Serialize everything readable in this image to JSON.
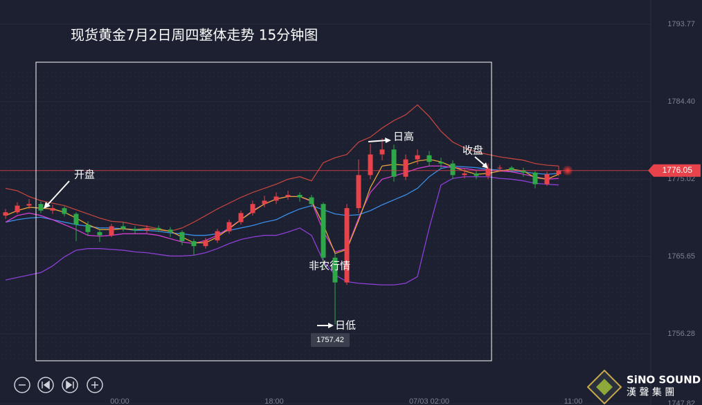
{
  "chart_data": {
    "type": "candlestick",
    "title": "现货黄金7月2日周四整体走势  15分钟图",
    "ylim": [
      1749,
      1796.7
    ],
    "yticks": [
      1793.77,
      {
        "value": 1784.4,
        "label": "1784.40"
      },
      1775.02,
      1765.65,
      1756.28,
      1747.82
    ],
    "grid": true,
    "x_labels": [
      "00:00",
      "18:00",
      "07/03 02:00",
      "11:00"
    ],
    "up_color": "#e8434a",
    "down_color": "#2fa84a",
    "ohlc": [
      [
        1770.6,
        1771.4,
        1770.2,
        1771.0
      ],
      [
        1771.0,
        1772.2,
        1770.8,
        1771.8
      ],
      [
        1771.8,
        1772.6,
        1771.4,
        1772.0
      ],
      [
        1772.0,
        1772.3,
        1770.9,
        1771.2
      ],
      [
        1771.2,
        1771.9,
        1770.8,
        1771.5
      ],
      [
        1771.5,
        1771.7,
        1770.5,
        1770.8
      ],
      [
        1770.8,
        1771.0,
        1767.5,
        1769.5
      ],
      [
        1769.5,
        1769.9,
        1768.2,
        1768.6
      ],
      [
        1768.6,
        1769.0,
        1767.4,
        1768.2
      ],
      [
        1768.2,
        1769.6,
        1768.0,
        1769.3
      ],
      [
        1769.3,
        1769.8,
        1768.7,
        1769.0
      ],
      [
        1769.0,
        1769.3,
        1768.4,
        1768.8
      ],
      [
        1768.8,
        1769.4,
        1768.5,
        1769.1
      ],
      [
        1769.1,
        1769.4,
        1768.6,
        1768.9
      ],
      [
        1768.9,
        1769.2,
        1768.0,
        1768.6
      ],
      [
        1768.6,
        1768.8,
        1767.0,
        1767.5
      ],
      [
        1767.5,
        1767.8,
        1765.8,
        1766.9
      ],
      [
        1766.9,
        1767.9,
        1766.6,
        1767.6
      ],
      [
        1767.6,
        1769.0,
        1767.3,
        1768.7
      ],
      [
        1768.7,
        1770.1,
        1768.4,
        1769.8
      ],
      [
        1769.8,
        1771.2,
        1769.5,
        1770.9
      ],
      [
        1770.9,
        1772.4,
        1770.6,
        1772.0
      ],
      [
        1772.0,
        1773.0,
        1771.6,
        1772.4
      ],
      [
        1772.4,
        1773.4,
        1772.0,
        1772.9
      ],
      [
        1772.9,
        1773.6,
        1772.5,
        1773.1
      ],
      [
        1773.1,
        1773.4,
        1772.3,
        1772.8
      ],
      [
        1772.8,
        1773.1,
        1771.6,
        1772.0
      ],
      [
        1772.0,
        1772.2,
        1764.2,
        1765.5
      ],
      [
        1765.5,
        1766.0,
        1757.42,
        1762.5
      ],
      [
        1762.5,
        1772.0,
        1762.2,
        1771.5
      ],
      [
        1771.5,
        1777.4,
        1770.9,
        1775.5
      ],
      [
        1775.5,
        1779.3,
        1775.0,
        1778.0
      ],
      [
        1778.0,
        1779.96,
        1777.3,
        1778.6
      ],
      [
        1778.6,
        1779.2,
        1774.7,
        1775.3
      ],
      [
        1775.3,
        1778.0,
        1774.9,
        1777.4
      ],
      [
        1777.4,
        1778.6,
        1776.8,
        1777.9
      ],
      [
        1777.9,
        1778.4,
        1776.6,
        1777.1
      ],
      [
        1777.1,
        1777.6,
        1776.3,
        1776.9
      ],
      [
        1776.9,
        1777.3,
        1775.0,
        1775.5
      ],
      [
        1775.5,
        1776.3,
        1775.1,
        1775.7
      ],
      [
        1775.7,
        1776.1,
        1775.0,
        1775.4
      ],
      [
        1775.4,
        1776.9,
        1775.0,
        1776.3
      ],
      [
        1776.3,
        1776.7,
        1775.9,
        1776.4
      ],
      [
        1776.4,
        1776.6,
        1775.8,
        1776.1
      ],
      [
        1776.1,
        1776.4,
        1775.3,
        1775.8
      ],
      [
        1775.8,
        1776.0,
        1773.9,
        1774.4
      ],
      [
        1774.4,
        1775.9,
        1774.2,
        1775.6
      ],
      [
        1775.6,
        1776.6,
        1775.4,
        1776.05
      ]
    ],
    "series": [
      {
        "color": "#c0443f",
        "values": [
          1773.9,
          1773.6,
          1772.9,
          1772.4,
          1772.1,
          1771.8,
          1771.3,
          1770.8,
          1770.3,
          1769.9,
          1769.8,
          1769.5,
          1769.3,
          1769.0,
          1768.7,
          1769.1,
          1769.8,
          1770.6,
          1771.4,
          1772.1,
          1772.8,
          1773.4,
          1773.9,
          1774.4,
          1775.0,
          1775.3,
          1774.8,
          1777.0,
          1777.6,
          1778.0,
          1779.5,
          1780.1,
          1781.2,
          1782.1,
          1782.8,
          1784.0,
          1782.6,
          1780.8,
          1779.5,
          1778.8,
          1778.3,
          1778.0,
          1777.7,
          1777.5,
          1777.3,
          1776.9,
          1776.7,
          1776.6
        ]
      },
      {
        "color": "#8e3fd6",
        "values": [
          1762.8,
          1763.1,
          1763.4,
          1763.7,
          1764.5,
          1765.6,
          1766.4,
          1766.6,
          1766.6,
          1766.5,
          1766.4,
          1766.2,
          1766.1,
          1765.9,
          1765.7,
          1765.7,
          1765.8,
          1766.1,
          1766.6,
          1767.2,
          1767.7,
          1768.0,
          1768.2,
          1768.2,
          1768.6,
          1769.1,
          1768.2,
          1765.1,
          1763.4,
          1762.6,
          1762.4,
          1762.3,
          1762.2,
          1762.2,
          1762.4,
          1763.2,
          1769.1,
          1774.3,
          1775.1,
          1775.3,
          1775.3,
          1775.3,
          1775.1,
          1775.0,
          1774.8,
          1774.5,
          1774.4,
          1774.3
        ]
      },
      {
        "color": "#3a8ee6",
        "values": [
          1769.8,
          1770.1,
          1770.3,
          1770.4,
          1770.1,
          1769.8,
          1769.5,
          1769.3,
          1769.1,
          1769.1,
          1769.0,
          1768.8,
          1768.8,
          1768.7,
          1768.5,
          1768.4,
          1768.2,
          1768.2,
          1768.4,
          1768.8,
          1769.1,
          1769.4,
          1769.8,
          1770.1,
          1770.8,
          1771.4,
          1771.8,
          1771.3,
          1770.8,
          1770.6,
          1770.7,
          1771.2,
          1771.9,
          1772.5,
          1773.1,
          1773.9,
          1775.3,
          1776.3,
          1776.6,
          1776.5,
          1776.4,
          1776.2,
          1776.1,
          1776.0,
          1775.9,
          1775.7,
          1775.6,
          1775.7
        ]
      },
      {
        "color": "#d13fd1",
        "values": [
          1769.8,
          1770.6,
          1770.9,
          1770.6,
          1770.1,
          1769.5,
          1768.9,
          1768.2,
          1768.1,
          1768.2,
          1768.4,
          1768.4,
          1768.4,
          1768.2,
          1767.8,
          1767.4,
          1767.2,
          1767.6,
          1768.2,
          1769.1,
          1770.1,
          1771.2,
          1772.0,
          1772.6,
          1772.9,
          1772.9,
          1772.3,
          1768.7,
          1766.2,
          1766.6,
          1770.3,
          1773.4,
          1775.0,
          1775.4,
          1775.8,
          1776.3,
          1776.6,
          1776.6,
          1776.4,
          1776.3,
          1776.1,
          1776.1,
          1776.0,
          1775.9,
          1775.6,
          1775.3,
          1775.0,
          1775.1
        ]
      },
      {
        "color": "#e8a33a",
        "values": [
          1770.6,
          1771.2,
          1771.6,
          1771.5,
          1771.4,
          1771.0,
          1770.3,
          1769.5,
          1768.9,
          1768.9,
          1769.0,
          1768.9,
          1769.0,
          1768.9,
          1768.7,
          1768.0,
          1767.3,
          1767.3,
          1768.0,
          1769.0,
          1770.1,
          1771.1,
          1772.0,
          1772.6,
          1772.9,
          1772.9,
          1772.4,
          1769.5,
          1766.0,
          1766.5,
          1770.0,
          1774.0,
          1776.6,
          1776.8,
          1776.7,
          1777.2,
          1777.4,
          1777.1,
          1776.5,
          1776.0,
          1775.6,
          1775.7,
          1776.0,
          1776.2,
          1776.0,
          1775.2,
          1775.0,
          1775.6
        ]
      }
    ],
    "annotations": [
      "开盘",
      "日高",
      "收盘",
      "非农行情",
      "日低"
    ],
    "branding": {
      "name": "SiNO SOUND",
      "subtitle": "漢 聲 集 團"
    }
  }
}
